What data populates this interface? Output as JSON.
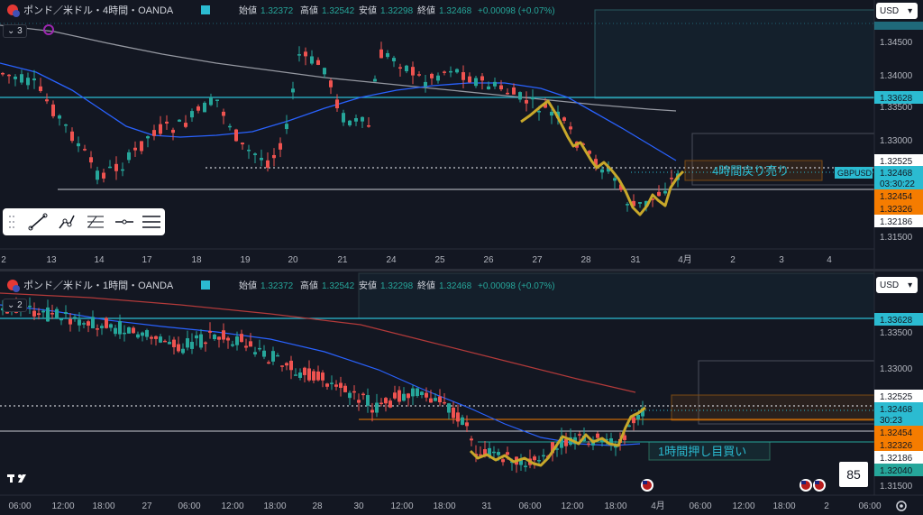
{
  "top": {
    "title": "ポンド／米ドル・4時間・OANDA",
    "ohlc": {
      "open_label": "始値",
      "open": "1.32372",
      "high_label": "高値",
      "high": "1.32542",
      "low_label": "安値",
      "low": "1.32298",
      "close_label": "終値",
      "close": "1.32468",
      "change": "+0.00098 (+0.07%)"
    },
    "indicator_count": "3",
    "currency": "USD",
    "price_ticks": [
      "1.34500",
      "1.34000",
      "1.33500",
      "1.33000",
      "1.31500"
    ],
    "price_tags": {
      "resistance": "1.33628",
      "p1": "1.32525",
      "symbol": "GBPUSD",
      "last": "1.32468",
      "countdown": "03:30:22",
      "orange1": "1.32454",
      "orange2": "1.32326",
      "support": "1.32186"
    },
    "time_ticks": [
      "2",
      "13",
      "14",
      "17",
      "18",
      "19",
      "20",
      "21",
      "24",
      "25",
      "26",
      "27",
      "28",
      "31",
      "4月",
      "2",
      "3",
      "4"
    ],
    "annotation": "4時間戻り売り"
  },
  "bottom": {
    "title": "ポンド／米ドル・1時間・OANDA",
    "ohlc": {
      "open_label": "始値",
      "open": "1.32372",
      "high_label": "高値",
      "high": "1.32542",
      "low_label": "安値",
      "low": "1.32298",
      "close_label": "終値",
      "close": "1.32468",
      "change": "+0.00098 (+0.07%)"
    },
    "indicator_count": "2",
    "currency": "USD",
    "price_ticks": [
      "1.33500",
      "1.33000",
      "1.31500"
    ],
    "price_tags": {
      "resistance": "1.33628",
      "p1": "1.32525",
      "last": "1.32468",
      "countdown": "30:23",
      "orange1": "1.32454",
      "orange2": "1.32326",
      "support": "1.32186",
      "green": "1.32040"
    },
    "time_ticks": [
      "06:00",
      "12:00",
      "18:00",
      "27",
      "06:00",
      "12:00",
      "18:00",
      "28",
      "30",
      "12:00",
      "18:00",
      "31",
      "06:00",
      "12:00",
      "18:00",
      "4月",
      "06:00",
      "12:00",
      "18:00",
      "2",
      "06:00"
    ],
    "annotation": "1時間押し目買い"
  },
  "badge": "85",
  "logo": "TV",
  "colors": {
    "bg": "#131722",
    "up": "#26a69a",
    "down": "#ef5350",
    "ma_blue": "#2962ff",
    "ma_gray": "#9598a1",
    "ma_red": "#b23a3a",
    "teal_line": "#22ab94",
    "zig": "#c8a82a",
    "accent": "#2bbbd1",
    "orange": "#f57c00"
  }
}
